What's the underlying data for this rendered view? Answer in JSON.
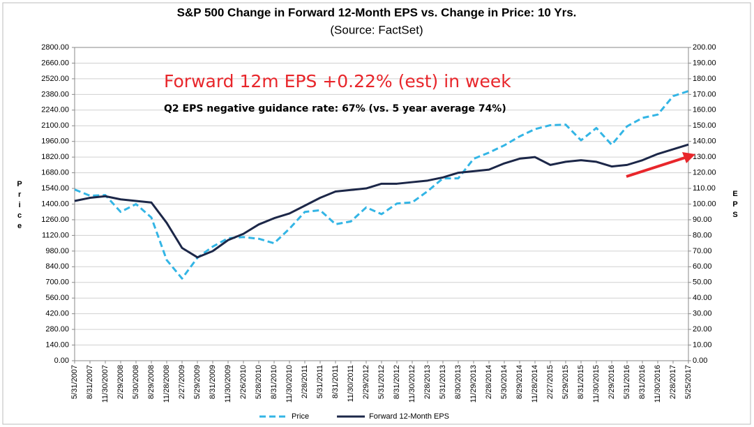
{
  "chart_data": {
    "type": "line",
    "title": "S&P 500 Change in Forward 12-Month EPS vs. Change in Price: 10 Yrs.",
    "subtitle": "(Source: FactSet)",
    "annotations": [
      "Forward 12m EPS +0.22% (est) in week",
      "Q2 EPS negative guidance rate: 67% (vs. 5 year average 74%)"
    ],
    "y_label": "Price",
    "y2_label": "EPS",
    "categories": [
      "5/31/2007",
      "8/31/2007",
      "11/30/2007",
      "2/29/2008",
      "5/30/2008",
      "8/29/2008",
      "11/28/2008",
      "2/27/2009",
      "5/29/2009",
      "8/31/2009",
      "11/30/2009",
      "2/26/2010",
      "5/28/2010",
      "8/31/2010",
      "11/30/2010",
      "2/28/2011",
      "5/31/2011",
      "8/31/2011",
      "11/30/2011",
      "2/29/2012",
      "5/31/2012",
      "8/31/2012",
      "11/30/2012",
      "2/28/2013",
      "5/31/2013",
      "8/30/2013",
      "11/29/2013",
      "2/28/2014",
      "5/30/2014",
      "8/29/2014",
      "11/28/2014",
      "2/27/2015",
      "5/29/2015",
      "8/31/2015",
      "11/30/2015",
      "2/29/2016",
      "5/31/2016",
      "8/31/2016",
      "11/30/2016",
      "2/28/2017",
      "5/25/2017"
    ],
    "series": [
      {
        "name": "Price",
        "color": "#33b5e5",
        "dashed": true,
        "values": [
          1530,
          1475,
          1480,
          1330,
          1400,
          1280,
          900,
          735,
          920,
          1020,
          1095,
          1105,
          1090,
          1050,
          1180,
          1330,
          1345,
          1220,
          1245,
          1370,
          1310,
          1405,
          1415,
          1515,
          1630,
          1630,
          1805,
          1860,
          1925,
          2005,
          2070,
          2105,
          2110,
          1970,
          2080,
          1930,
          2095,
          2170,
          2200,
          2365,
          2410
        ]
      },
      {
        "name": "Forward 12-Month EPS",
        "color": "#1c2748",
        "dashed": false,
        "axis": "y2",
        "values": [
          102,
          104,
          105,
          103,
          102,
          101,
          88,
          72,
          66,
          70,
          77,
          81,
          87,
          91,
          94,
          99,
          104,
          108,
          109,
          110,
          113,
          113,
          114,
          115,
          117,
          120,
          121,
          122,
          126,
          129,
          130,
          125,
          127,
          128,
          127,
          124,
          125,
          128,
          132,
          135,
          138
        ]
      }
    ],
    "ylim": [
      0,
      2800
    ],
    "yticks": [
      {
        "value": 0,
        "label": "0.00"
      },
      {
        "value": 140,
        "label": "140.00"
      },
      {
        "value": 280,
        "label": "280.00"
      },
      {
        "value": 420,
        "label": "420.00"
      },
      {
        "value": 560,
        "label": "560.00"
      },
      {
        "value": 700,
        "label": "700.00"
      },
      {
        "value": 840,
        "label": "840.00"
      },
      {
        "value": 980,
        "label": "980.00"
      },
      {
        "value": 1120,
        "label": "1120.00"
      },
      {
        "value": 1260,
        "label": "1260.00"
      },
      {
        "value": 1400,
        "label": "1400.00"
      },
      {
        "value": 1540,
        "label": "1540.00"
      },
      {
        "value": 1680,
        "label": "1680.00"
      },
      {
        "value": 1820,
        "label": "1820.00"
      },
      {
        "value": 1960,
        "label": "1960.00"
      },
      {
        "value": 2100,
        "label": "2100.00"
      },
      {
        "value": 2240,
        "label": "2240.00"
      },
      {
        "value": 2380,
        "label": "2380.00"
      },
      {
        "value": 2520,
        "label": "2520.00"
      },
      {
        "value": 2660,
        "label": "2660.00"
      },
      {
        "value": 2800,
        "label": "2800.00"
      }
    ],
    "y2lim": [
      0,
      200
    ],
    "y2ticks": [
      {
        "value": 0,
        "label": "0.00"
      },
      {
        "value": 10,
        "label": "10.00"
      },
      {
        "value": 20,
        "label": "20.00"
      },
      {
        "value": 30,
        "label": "30.00"
      },
      {
        "value": 40,
        "label": "40.00"
      },
      {
        "value": 50,
        "label": "50.00"
      },
      {
        "value": 60,
        "label": "60.00"
      },
      {
        "value": 70,
        "label": "70.00"
      },
      {
        "value": 80,
        "label": "80.00"
      },
      {
        "value": 90,
        "label": "90.00"
      },
      {
        "value": 100,
        "label": "100.00"
      },
      {
        "value": 110,
        "label": "110.00"
      },
      {
        "value": 120,
        "label": "120.00"
      },
      {
        "value": 130,
        "label": "130.00"
      },
      {
        "value": 140,
        "label": "140.00"
      },
      {
        "value": 150,
        "label": "150.00"
      },
      {
        "value": 160,
        "label": "160.00"
      },
      {
        "value": 170,
        "label": "170.00"
      },
      {
        "value": 180,
        "label": "180.00"
      },
      {
        "value": 190,
        "label": "190.00"
      },
      {
        "value": 200,
        "label": "200.00"
      }
    ],
    "grid": true
  }
}
